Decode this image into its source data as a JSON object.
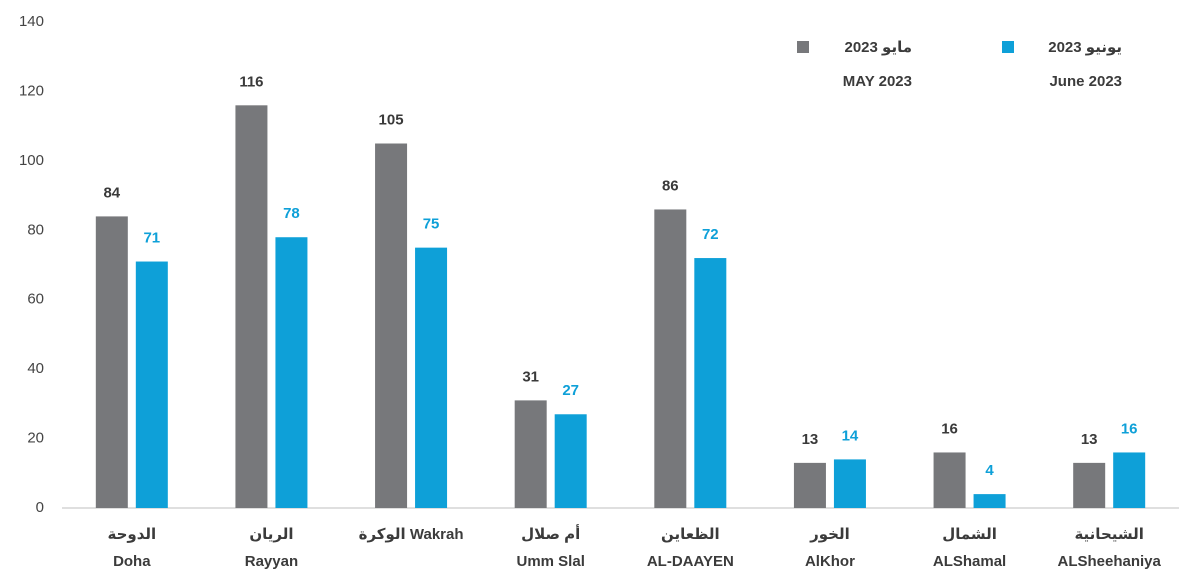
{
  "chart_data": {
    "type": "bar",
    "categories": [
      [
        "الدوحة",
        "Doha"
      ],
      [
        "الريان",
        "Rayyan"
      ],
      [
        "الوكرة Wakrah"
      ],
      [
        "أم صلال",
        "Umm Slal"
      ],
      [
        "الظعاين",
        "AL-DAAYEN"
      ],
      [
        "الخور",
        "AlKhor"
      ],
      [
        "الشمال",
        "ALShamal"
      ],
      [
        "الشيحانية",
        "ALSheehaniya"
      ]
    ],
    "series": [
      {
        "name": [
          "مايو 2023",
          "MAY 2023"
        ],
        "color": "#77787b",
        "label_color": "#3a3a3a",
        "values": [
          84,
          116,
          105,
          31,
          86,
          13,
          16,
          13
        ]
      },
      {
        "name": [
          "2023 يونيو",
          "June 2023"
        ],
        "color": "#0ea0d8",
        "label_color": "#0ea0d8",
        "values": [
          71,
          78,
          75,
          27,
          72,
          14,
          4,
          16
        ]
      }
    ],
    "ylim": [
      0,
      140
    ],
    "yticks": [
      0,
      20,
      40,
      60,
      80,
      100,
      120,
      140
    ],
    "grid": false,
    "legend": "top-right"
  }
}
